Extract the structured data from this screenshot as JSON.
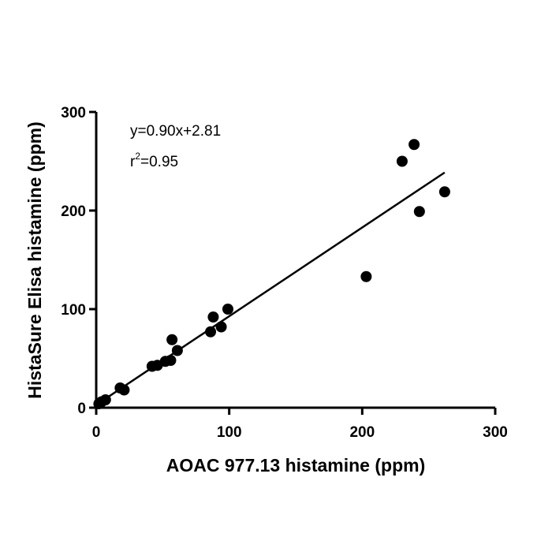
{
  "chart_data": {
    "type": "scatter",
    "xlabel": "AOAC 977.13 histamine (ppm)",
    "ylabel": "HistaSure Elisa histamine (ppm)",
    "xlim": [
      0,
      300
    ],
    "ylim": [
      0,
      300
    ],
    "xticks": [
      "0",
      "100",
      "200",
      "300"
    ],
    "yticks": [
      "0",
      "100",
      "200",
      "300"
    ],
    "grid": false,
    "legend": "none",
    "annotation": {
      "equation": "y=0.90x+2.81",
      "r2_prefix": "r",
      "r2_exponent": "2",
      "r2_value": "=0.95"
    },
    "fit_line": {
      "slope": 0.9,
      "intercept": 2.81,
      "x_range": [
        0,
        262
      ]
    },
    "points": [
      {
        "x": 2,
        "y": 4
      },
      {
        "x": 4,
        "y": 6
      },
      {
        "x": 7,
        "y": 8
      },
      {
        "x": 18,
        "y": 20
      },
      {
        "x": 21,
        "y": 18
      },
      {
        "x": 42,
        "y": 42
      },
      {
        "x": 46,
        "y": 43
      },
      {
        "x": 52,
        "y": 47
      },
      {
        "x": 56,
        "y": 48
      },
      {
        "x": 57,
        "y": 69
      },
      {
        "x": 61,
        "y": 58
      },
      {
        "x": 86,
        "y": 77
      },
      {
        "x": 88,
        "y": 92
      },
      {
        "x": 94,
        "y": 82
      },
      {
        "x": 99,
        "y": 100
      },
      {
        "x": 203,
        "y": 133
      },
      {
        "x": 230,
        "y": 250
      },
      {
        "x": 239,
        "y": 267
      },
      {
        "x": 243,
        "y": 199
      },
      {
        "x": 262,
        "y": 219
      }
    ],
    "colors": {
      "marker": "#000000",
      "line": "#000000",
      "axis": "#000000"
    }
  }
}
